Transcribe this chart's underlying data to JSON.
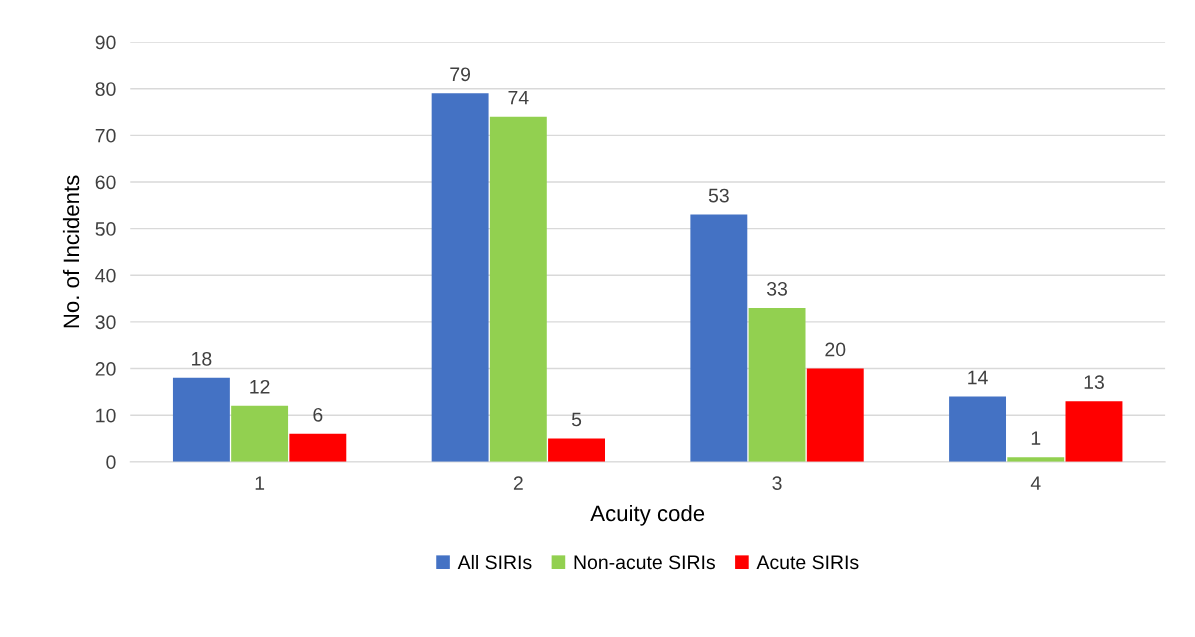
{
  "chart_data": {
    "type": "bar",
    "xlabel": "Acuity code",
    "ylabel": "No. of Incidents",
    "categories": [
      "1",
      "2",
      "3",
      "4"
    ],
    "series": [
      {
        "name": "All SIRIs",
        "color": "#4472c4",
        "values": [
          18,
          79,
          53,
          14
        ]
      },
      {
        "name": "Non-acute SIRIs",
        "color": "#92d050",
        "values": [
          12,
          74,
          33,
          1
        ]
      },
      {
        "name": "Acute SIRIs",
        "color": "#ff0000",
        "values": [
          6,
          5,
          20,
          13
        ]
      }
    ],
    "ylim": [
      0,
      90
    ],
    "yticks": [
      0,
      10,
      20,
      30,
      40,
      50,
      60,
      70,
      80,
      90
    ],
    "grid": "y",
    "legend": "bottom",
    "data_labels": true
  }
}
